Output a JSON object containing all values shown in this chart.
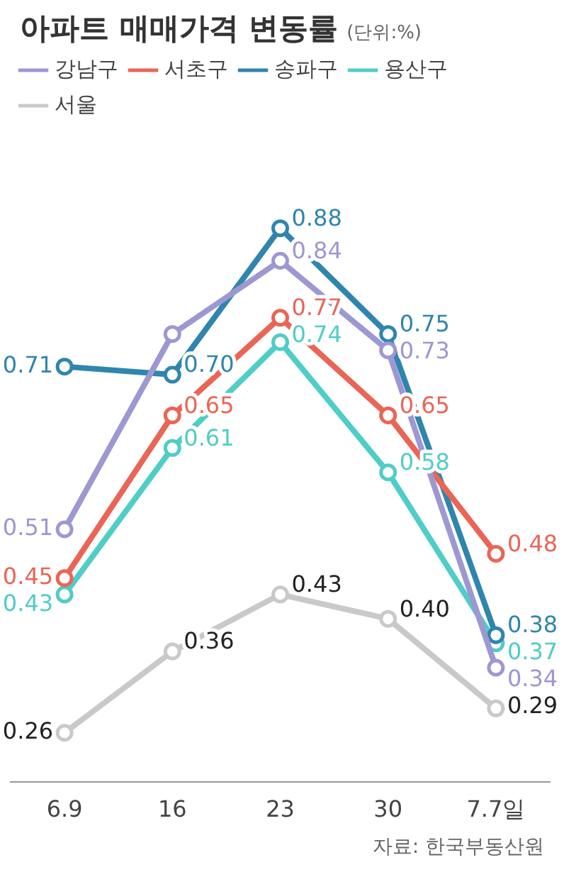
{
  "chart_data": {
    "type": "line",
    "title": "아파트 매매가격 변동률",
    "subtitle": "(단위:%)",
    "categories": [
      "6.9",
      "16",
      "23",
      "30",
      "7.7일"
    ],
    "series": [
      {
        "name": "강남구",
        "color": "#9d97d2",
        "values": [
          0.51,
          0.75,
          0.84,
          0.73,
          0.34
        ],
        "value_labels": [
          "0.51",
          null,
          "0.84",
          "0.73",
          "0.34"
        ]
      },
      {
        "name": "서초구",
        "color": "#ea6556",
        "values": [
          0.45,
          0.65,
          0.77,
          0.65,
          0.48
        ],
        "value_labels": [
          "0.45",
          "0.65",
          "0.77",
          "0.65",
          "0.48"
        ]
      },
      {
        "name": "송파구",
        "color": "#2f85ad",
        "values": [
          0.71,
          0.7,
          0.88,
          0.75,
          0.38
        ],
        "value_labels": [
          "0.71",
          "0.70",
          "0.88",
          "0.75",
          "0.38"
        ]
      },
      {
        "name": "용산구",
        "color": "#4fcdc6",
        "values": [
          0.43,
          0.61,
          0.74,
          0.58,
          0.37
        ],
        "value_labels": [
          "0.43",
          "0.61",
          "0.74",
          "0.58",
          "0.37"
        ]
      },
      {
        "name": "서울",
        "color": "#c9c9c9",
        "values": [
          0.26,
          0.36,
          0.43,
          0.4,
          0.29
        ],
        "value_labels": [
          "0.26",
          "0.36",
          "0.43",
          "0.40",
          "0.29"
        ]
      }
    ],
    "tick_labels": "x",
    "marker": "circle",
    "legend": "top left",
    "grid": false,
    "annotations": [
      "자료: 한국부동산원"
    ]
  }
}
